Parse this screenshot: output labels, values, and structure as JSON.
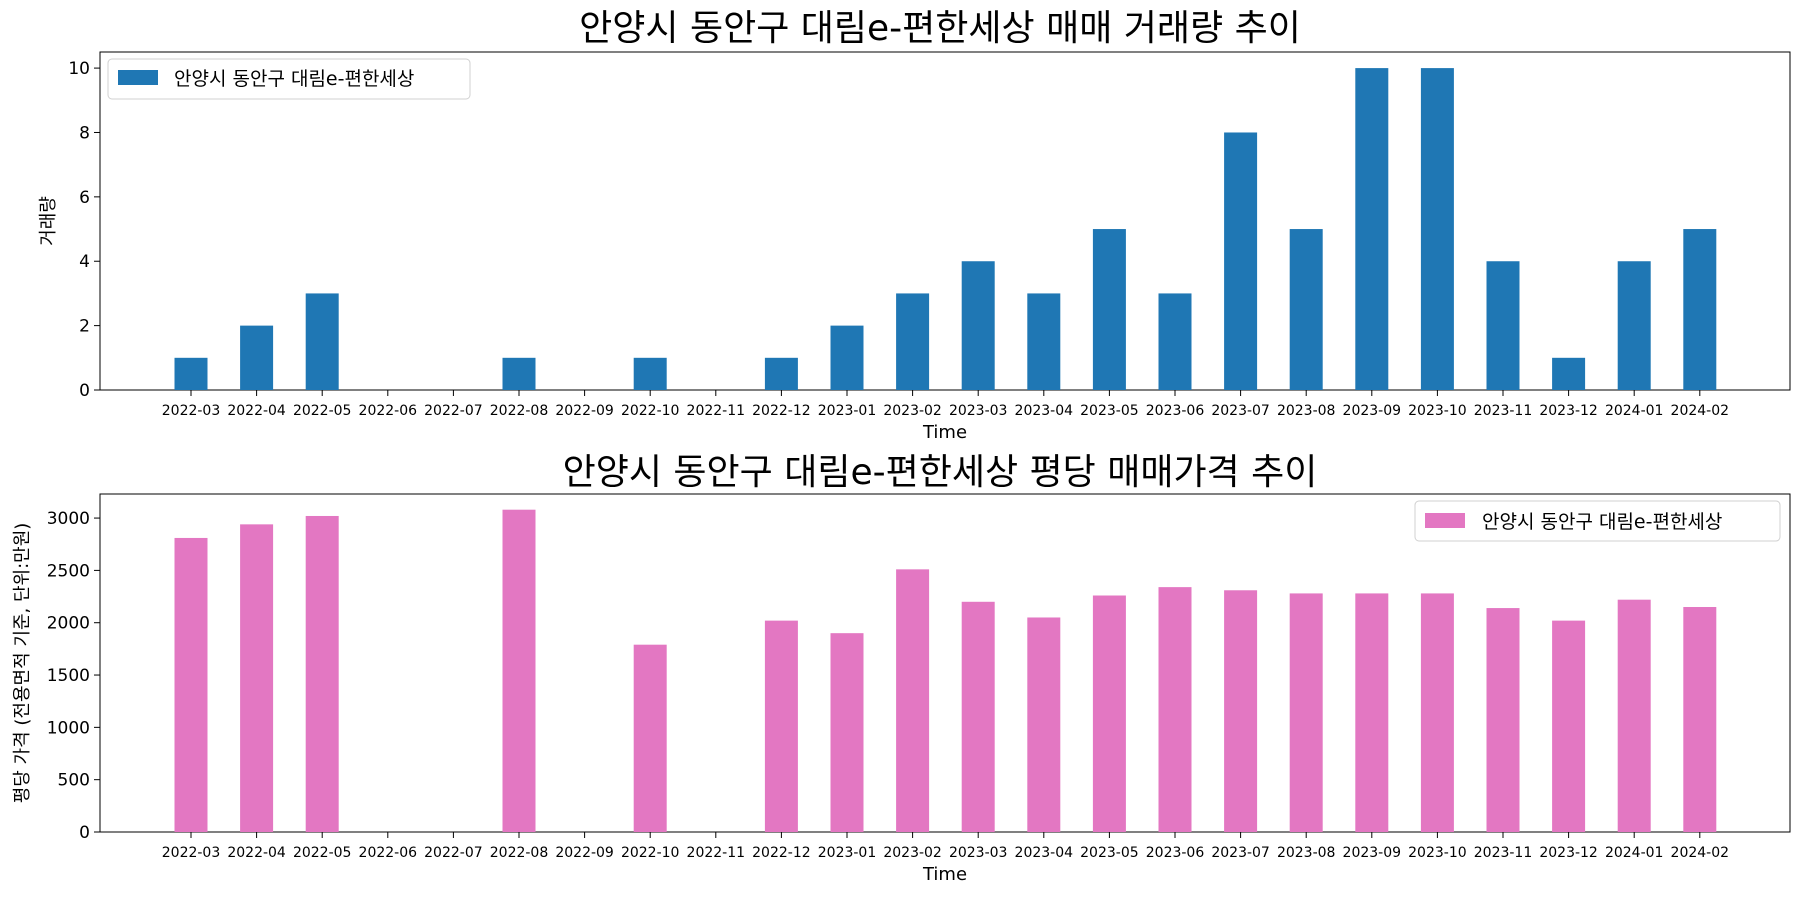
{
  "chart_data": [
    {
      "type": "bar",
      "title": "안양시 동안구 대림e-편한세상 매매 거래량 추이",
      "xlabel": "Time",
      "ylabel": "거래량",
      "ylim": [
        0,
        10.5
      ],
      "yticks": [
        0,
        2,
        4,
        6,
        8,
        10
      ],
      "legend": "top-left",
      "color": "#1f77b4",
      "categories": [
        "2022-03",
        "2022-04",
        "2022-05",
        "2022-06",
        "2022-07",
        "2022-08",
        "2022-09",
        "2022-10",
        "2022-11",
        "2022-12",
        "2023-01",
        "2023-02",
        "2023-03",
        "2023-04",
        "2023-05",
        "2023-06",
        "2023-07",
        "2023-08",
        "2023-09",
        "2023-10",
        "2023-11",
        "2023-12",
        "2024-01",
        "2024-02"
      ],
      "series": [
        {
          "name": "안양시 동안구 대림e-편한세상",
          "values": [
            1,
            2,
            3,
            0,
            0,
            1,
            0,
            1,
            0,
            1,
            2,
            3,
            4,
            3,
            5,
            3,
            8,
            5,
            10,
            10,
            4,
            1,
            4,
            5
          ]
        }
      ]
    },
    {
      "type": "bar",
      "title": "안양시 동안구 대림e-편한세상 평당 매매가격 추이",
      "xlabel": "Time",
      "ylabel": "평당 가격 (전용면적 기준, 단위:만원)",
      "ylim": [
        0,
        3230
      ],
      "yticks": [
        0,
        500,
        1000,
        1500,
        2000,
        2500,
        3000
      ],
      "legend": "top-right",
      "color": "#e377c2",
      "categories": [
        "2022-03",
        "2022-04",
        "2022-05",
        "2022-06",
        "2022-07",
        "2022-08",
        "2022-09",
        "2022-10",
        "2022-11",
        "2022-12",
        "2023-01",
        "2023-02",
        "2023-03",
        "2023-04",
        "2023-05",
        "2023-06",
        "2023-07",
        "2023-08",
        "2023-09",
        "2023-10",
        "2023-11",
        "2023-12",
        "2024-01",
        "2024-02"
      ],
      "series": [
        {
          "name": "안양시 동안구 대림e-편한세상",
          "values": [
            2810,
            2940,
            3020,
            0,
            0,
            3080,
            0,
            1790,
            0,
            2020,
            1900,
            2510,
            2200,
            2050,
            2260,
            2340,
            2310,
            2280,
            2280,
            2280,
            2140,
            2020,
            2220,
            2150
          ]
        }
      ]
    }
  ]
}
